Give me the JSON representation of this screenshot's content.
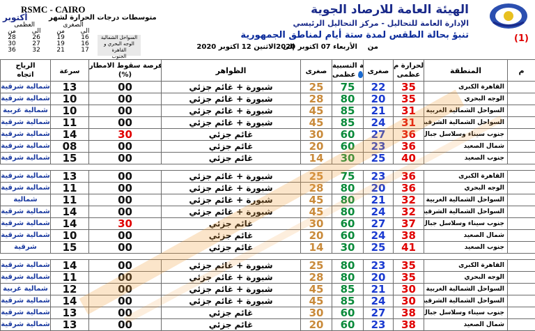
{
  "header": {
    "org_name": "الهيئة العامة للارصاد الجوية",
    "org_sub": "الإدارة العامة للتحاليل - مركز التحاليل الرئيسي",
    "forecast_title": "تنبؤ بحالة الطقس لمدة ستة أيام لمناطق الجمهورية",
    "index": "(1)",
    "from_label": "من",
    "from_date": "الأربعاء 07 اكتوبر 2020",
    "to_label": "إلى",
    "to_date": "الاثنين 12 اكتوبر 2020",
    "rsmc": "RSMC - CAIRO",
    "clim_title": "متوسطات درجات الحرارة لشهر",
    "clim_month": "أكتوبر",
    "clim_headers": [
      "العظمى",
      "الصغرى"
    ],
    "clim_sub": [
      "من",
      "الى",
      "من",
      "الى"
    ],
    "clim_rows": [
      [
        "28",
        "26",
        "19",
        "16"
      ],
      [
        "30",
        "27",
        "19",
        "16"
      ],
      [
        "36",
        "32",
        "21",
        "17"
      ]
    ],
    "clim_legend": [
      "السواحل الشمالية",
      "الوجه البحري و القاهرة",
      "الجنوب"
    ]
  },
  "columns": {
    "wind": "الرياح",
    "wind_dir": "اتجاه",
    "wind_speed": "سرعة",
    "rain": "فرصة سقوط الامطار",
    "rain_unit": "(%)",
    "weather": "الظواهر",
    "humidity": "الرطوبة النسبية",
    "humidity_unit": "%",
    "hum_max": "عظمى",
    "hum_min": "صغرى",
    "temp": "درجة الحرارة م",
    "temp_max": "عظمى",
    "temp_min": "صغرى",
    "region": "المنطقة",
    "day": "م"
  },
  "rows": [
    {
      "reg": "القاهرة الكبرى",
      "tmax": "35",
      "tmin": "22",
      "hmax": "75",
      "hmin": "25",
      "wx": "شبورة + غائم جزئي",
      "rain": "00",
      "spd": "13",
      "dir": "شمالية شرقية"
    },
    {
      "reg": "الوجه البحري",
      "tmax": "35",
      "tmin": "20",
      "hmax": "80",
      "hmin": "28",
      "wx": "شبورة + غائم جزئي",
      "rain": "00",
      "spd": "10",
      "dir": "شمالية شرقية"
    },
    {
      "reg": "السواحل الشمالية الغربية",
      "tmax": "31",
      "tmin": "21",
      "hmax": "85",
      "hmin": "45",
      "wx": "شبورة + غائم جزئي",
      "rain": "00",
      "spd": "10",
      "dir": "شمالية غربية"
    },
    {
      "reg": "السواحل الشمالية الشرقية وسط سيناء",
      "tmax": "31",
      "tmin": "24",
      "hmax": "85",
      "hmin": "45",
      "wx": "شبورة + غائم جزئي",
      "rain": "00",
      "spd": "11",
      "dir": "شمالية شرقية"
    },
    {
      "reg": "جنوب سيناء وسلاسل جبال البحر الاحمر",
      "tmax": "36",
      "tmin": "27",
      "hmax": "60",
      "hmin": "30",
      "wx": "غائم جزئي",
      "rain": "30",
      "spd": "14",
      "dir": "شمالية شرقية",
      "hot": true
    },
    {
      "reg": "شمال الصعيد",
      "tmax": "36",
      "tmin": "23",
      "hmax": "60",
      "hmin": "20",
      "wx": "غائم جزئي",
      "rain": "00",
      "spd": "08",
      "dir": "شمالية شرقية"
    },
    {
      "reg": "جنوب الصعيد",
      "tmax": "40",
      "tmin": "25",
      "hmax": "30",
      "hmin": "14",
      "wx": "غائم جزئي",
      "rain": "00",
      "spd": "15",
      "dir": "شمالية شرقية"
    },
    {
      "reg": "القاهرة الكبرى",
      "tmax": "36",
      "tmin": "23",
      "hmax": "75",
      "hmin": "25",
      "wx": "شبورة + غائم جزئي",
      "rain": "00",
      "spd": "13",
      "dir": "شمالية شرقية"
    },
    {
      "reg": "الوجه البحري",
      "tmax": "36",
      "tmin": "20",
      "hmax": "80",
      "hmin": "28",
      "wx": "شبورة + غائم جزئي",
      "rain": "00",
      "spd": "11",
      "dir": "شمالية شرقية"
    },
    {
      "reg": "السواحل الشمالية الغربية",
      "tmax": "32",
      "tmin": "21",
      "hmax": "80",
      "hmin": "45",
      "wx": "شبورة + غائم جزئي",
      "rain": "00",
      "spd": "11",
      "dir": "شمالية"
    },
    {
      "reg": "السواحل الشمالية الشرقية ووسط سيناء",
      "tmax": "32",
      "tmin": "24",
      "hmax": "80",
      "hmin": "45",
      "wx": "شبورة + غائم جزئي",
      "rain": "00",
      "spd": "14",
      "dir": "شمالية شرقية"
    },
    {
      "reg": "جنوب سيناء وسلاسل جبال البحر الاحمر",
      "tmax": "37",
      "tmin": "27",
      "hmax": "60",
      "hmin": "30",
      "wx": "غائم جزئي",
      "rain": "30",
      "spd": "14",
      "dir": "شمالية شرقية",
      "hot": true
    },
    {
      "reg": "شمال الصعيد",
      "tmax": "38",
      "tmin": "24",
      "hmax": "60",
      "hmin": "20",
      "wx": "غائم جزئي",
      "rain": "00",
      "spd": "10",
      "dir": "شمالية شرقية"
    },
    {
      "reg": "جنوب الصعيد",
      "tmax": "41",
      "tmin": "25",
      "hmax": "30",
      "hmin": "14",
      "wx": "غائم جزئي",
      "rain": "00",
      "spd": "15",
      "dir": "شرقية"
    },
    {
      "reg": "القاهرة الكبرى",
      "tmax": "35",
      "tmin": "23",
      "hmax": "80",
      "hmin": "25",
      "wx": "شبورة + غائم جزئي",
      "rain": "00",
      "spd": "14",
      "dir": "شمالية شرقية"
    },
    {
      "reg": "الوجه البحري",
      "tmax": "35",
      "tmin": "20",
      "hmax": "80",
      "hmin": "28",
      "wx": "شبورة + غائم جزئي",
      "rain": "00",
      "spd": "11",
      "dir": "شمالية شرقية"
    },
    {
      "reg": "السواحل الشمالية الغربية",
      "tmax": "30",
      "tmin": "21",
      "hmax": "85",
      "hmin": "45",
      "wx": "شبورة + غائم جزئي",
      "rain": "00",
      "spd": "12",
      "dir": "شمالية غربية"
    },
    {
      "reg": "السواحل الشمالية الشرقية ووسط سيناء",
      "tmax": "30",
      "tmin": "24",
      "hmax": "85",
      "hmin": "45",
      "wx": "شبورة + غائم جزئي",
      "rain": "00",
      "spd": "14",
      "dir": "شمالية شرقية"
    },
    {
      "reg": "جنوب سيناء وسلاسل جبال البحر الاحمر",
      "tmax": "38",
      "tmin": "27",
      "hmax": "60",
      "hmin": "30",
      "wx": "غائم جزئي",
      "rain": "00",
      "spd": "13",
      "dir": "شمالية شرقية"
    },
    {
      "reg": "شمال الصعيد",
      "tmax": "38",
      "tmin": "23",
      "hmax": "60",
      "hmin": "20",
      "wx": "غائم جزئي",
      "rain": "00",
      "spd": "13",
      "dir": "شمالية شرقية"
    }
  ]
}
